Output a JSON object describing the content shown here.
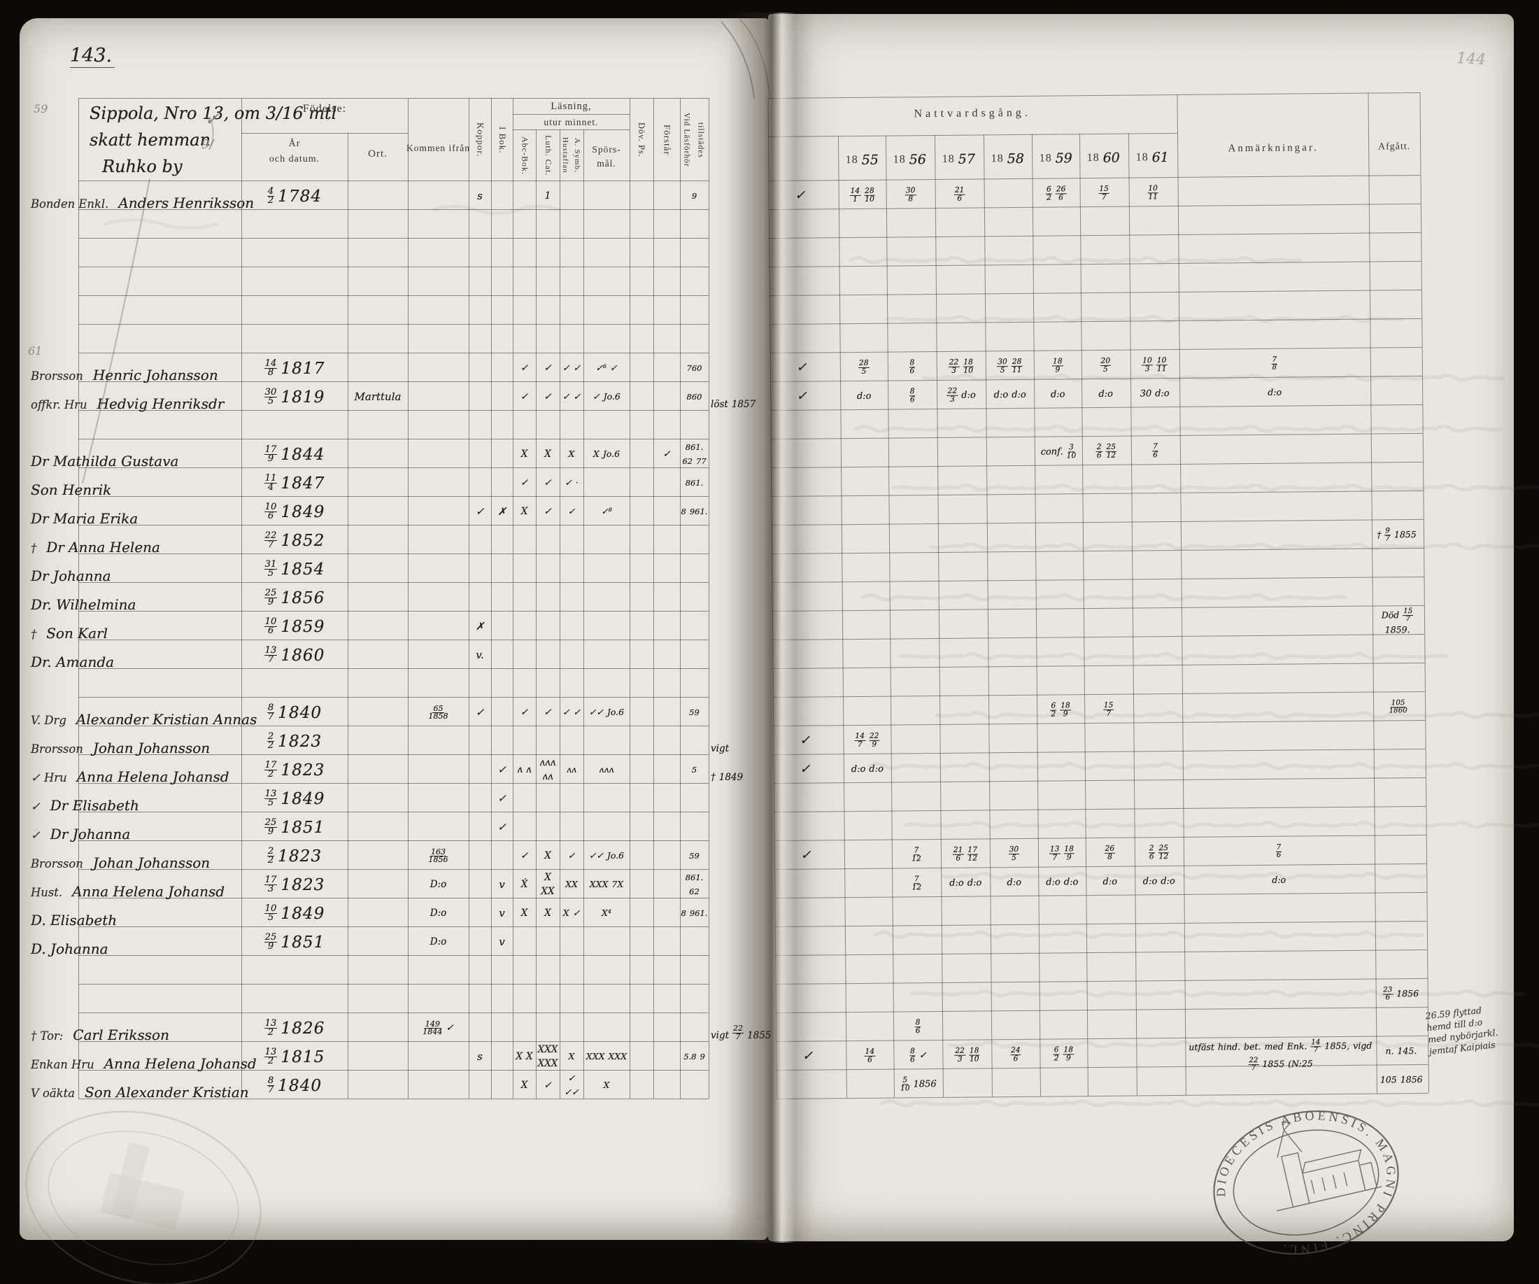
{
  "scan": {
    "page_number": "143.",
    "ghost_page_number": "144"
  },
  "left_page": {
    "house_note": [
      "Sippola, Nro 13, om 3/16 mtl",
      "skatt hemman",
      "Ruhko by"
    ],
    "headers": {
      "fodelse": "Födelse:",
      "ar": "År",
      "och_datum": "och datum.",
      "ort": "Ort.",
      "kommen": "Kommen ifrån",
      "koppor": "Koppor.",
      "i_bok": "I Bok.",
      "lasning_1": "Läsning,",
      "lasning_2": "utur minnet.",
      "abc": "Abc-Bok.",
      "luth": "Luth. Cat.",
      "hust_1": "Hustaflan",
      "hust_2": "A. Symb.",
      "spors_1": "Spörs-",
      "spors_2": "mål.",
      "dov": "Döv. Ps.",
      "forstar": "Förstår",
      "vid_1": "Vid Läsförhör",
      "vid_2": "tillstädes"
    },
    "pencil_notes": [
      "59",
      "61",
      "✓",
      "9/"
    ]
  },
  "right_page": {
    "headers": {
      "nattvardsgang": "Nattvardsgång.",
      "years": [
        "1855",
        "1856",
        "1857",
        "1858",
        "1859",
        "1860",
        "1861"
      ],
      "anmarkningar": "Anmärkningar.",
      "afgatt": "Afgått."
    },
    "margin_note": [
      "26.59 flyttad",
      "hemd till d:o",
      "med nybörjarkl.",
      "jemtaf Kaipiais"
    ]
  },
  "stamp": {
    "legend": "DIOECESIS ABOENSIS. MAGNI PRINC. FINL."
  },
  "rows": [
    {
      "prefix": "Bonden Enkl.",
      "name": "Anders Henriksson",
      "date": "4/2 1784",
      "koppor": "s",
      "luth": "1",
      "vid": "9",
      "check": "✓",
      "y1855": "14/1 28/10",
      "y1856": "30/8",
      "y1857": "21/6",
      "y1859": "6/2 26/6",
      "y1860": "15/7",
      "y1861": "10/11"
    },
    {},
    {},
    {},
    {},
    {},
    {
      "prefix": "Brorsson",
      "name": "Henric Johansson",
      "date": "14/8 1817",
      "abc": "✓",
      "luth": "✓",
      "hustavla": "✓ ✓",
      "sporsmal": "✓⁶ ✓",
      "vid": "760",
      "check": "✓",
      "y1855": "28/5",
      "y1856": "8/6",
      "y1857": "22/3 18/10",
      "y1858": "30/5 28/11",
      "y1859": "18/9",
      "y1860": "20/5",
      "y1861": "10/3 10/11",
      "anm": "7/8"
    },
    {
      "prefix": "offkr. Hru",
      "name": "Hedvig Henriksdr",
      "date": "30/5 1819",
      "ort": "Marttula",
      "abc": "✓",
      "luth": "✓",
      "hustavla": "✓ ✓",
      "sporsmal": "✓ Jo.6",
      "vid": "860",
      "margin": "löst 1857",
      "check": "✓",
      "y1855": "d:o",
      "y1856": "8/6",
      "y1857": "22/3 d:o",
      "y1858": "d:o d:o",
      "y1859": "d:o",
      "y1860": "d:o",
      "y1861": "30 d:o",
      "anm": "d:o"
    },
    {},
    {
      "name": "Dr Mathilda Gustava",
      "date": "17/9 1844",
      "abc": "X",
      "luth": "X",
      "hustavla": "X",
      "sporsmal": "X Jo.6",
      "forstar": "✓",
      "vid": "861. 62 77",
      "y1859": "conf. 3/10",
      "y1860": "2/6 25/12",
      "y1861": "7/6"
    },
    {
      "name": "Son Henrik",
      "date": "11/4 1847",
      "abc": "✓",
      "luth": "✓",
      "hustavla": "✓ ·",
      "vid": "861."
    },
    {
      "name": "Dr Maria Erika",
      "date": "10/6 1849",
      "koppor": "✓",
      "ibok": "✗",
      "abc": "X",
      "luth": "✓",
      "hustavla": "✓",
      "sporsmal": "✓⁸",
      "vid": "8 961."
    },
    {
      "prefix": "†",
      "name": "Dr Anna Helena",
      "date": "22/7 1852",
      "afgatt": "† 9/7 1855"
    },
    {
      "name": "Dr Johanna",
      "date": "31/5 1854"
    },
    {
      "name": "Dr. Wilhelmina",
      "date": "25/9 1856"
    },
    {
      "prefix": "†",
      "name": "Son Karl",
      "date": "10/6 1859",
      "koppor": "✗",
      "afgatt": "Död 15/7 1859."
    },
    {
      "name": "Dr. Amanda",
      "date": "13/7 1860",
      "koppor": "v."
    },
    {},
    {
      "prefix": "V. Drg",
      "name": "Alexander Kristian Annas",
      "date": "8/7 1840",
      "kommen": "65/1858",
      "koppor": "✓",
      "abc": "✓",
      "luth": "✓",
      "hustavla": "✓ ✓",
      "sporsmal": "✓✓ Jo.6",
      "vid": "59",
      "y1859": "6/2 18/9",
      "y1860": "15/7",
      "afgatt": "105/1860"
    },
    {
      "prefix": "Brorsson",
      "name": "Johan Johansson",
      "date": "2/2 1823",
      "margin": "vigt",
      "check": "✓",
      "y1855": "14/7 22/9"
    },
    {
      "prefix": "✓ Hru",
      "name": "Anna Helena Johansd",
      "date": "17/2 1823",
      "ibok": "✓",
      "abc": "ʌ ʌ",
      "luth": "ʌʌʌ ʌʌ",
      "hustavla": "ʌʌ",
      "sporsmal": "ʌʌʌ",
      "vid": "5",
      "margin": "† 1849",
      "check": "✓",
      "y1855": "d:o d:o"
    },
    {
      "prefix": "✓",
      "name": "Dr Elisabeth",
      "date": "13/5 1849",
      "ibok": "✓"
    },
    {
      "prefix": "✓",
      "name": "Dr Johanna",
      "date": "25/9 1851",
      "ibok": "✓"
    },
    {
      "prefix": "Brorsson",
      "name": "Johan Johansson",
      "date": "2/2 1823",
      "kommen": "163/1856",
      "abc": "✓",
      "luth": "X",
      "hustavla": "✓",
      "sporsmal": "✓✓ Jo.6",
      "vid": "59",
      "check": "✓",
      "y1856": "7/12",
      "y1857": "21/6 17/12",
      "y1858": "30/5",
      "y1859": "13/7 18/9",
      "y1860": "26/8",
      "y1861": "2/6 25/12",
      "anm": "7/6"
    },
    {
      "prefix": "Hust.",
      "name": "Anna Helena Johansd",
      "date": "17/3 1823",
      "kommen": "D:o",
      "ibok": "v",
      "abc": "Ẋ",
      "luth": "X XX",
      "hustavla": "XX",
      "sporsmal": "XXX 7X",
      "vid": "861. 62",
      "y1856": "7/12",
      "y1857": "d:o d:o",
      "y1858": "d:o",
      "y1859": "d:o d:o",
      "y1860": "d:o",
      "y1861": "d:o d:o",
      "anm": "d:o"
    },
    {
      "name": "D. Elisabeth",
      "date": "10/5 1849",
      "kommen": "D:o",
      "ibok": "v",
      "abc": "X",
      "luth": "X",
      "hustavla": "X ✓",
      "sporsmal": "X⁴",
      "vid": "8 961."
    },
    {
      "name": "D. Johanna",
      "date": "25/9 1851",
      "kommen": "D:o",
      "ibok": "v"
    },
    {},
    {
      "afgatt": "23/6 1856"
    },
    {
      "prefix": "† Tor:",
      "name": "Carl Eriksson",
      "date": "13/2 1826",
      "kommen": "149/1844 ✓",
      "margin": "vigt 22/7 1855",
      "y1856": "8/6"
    },
    {
      "prefix": "Enkan Hru",
      "name": "Anna Helena Johansd",
      "date": "13/2 1815",
      "koppor": "s",
      "abc": "X X",
      "luth": "XXX XXX",
      "hustavla": "X",
      "sporsmal": "XXX XXX",
      "vid": "5.8 9",
      "check": "✓",
      "y1855": "14/6",
      "y1856": "8/6 ✓",
      "y1857": "22/3 18/10",
      "y1858": "24/6",
      "y1859": "6/2 18/9",
      "anm": "utfäst hind. bet. med Enk. 14/7 1855, vigd 22/7 1855 (N:25",
      "afgatt": "n. 145."
    },
    {
      "prefix": "V oäkta",
      "name": "Son Alexander Kristian",
      "date": "8/7 1840",
      "abc": "X",
      "luth": "✓",
      "hustavla": "✓ ✓✓",
      "sporsmal": "X",
      "y1856": "5/10 1856",
      "afgatt": "105 1856"
    }
  ]
}
